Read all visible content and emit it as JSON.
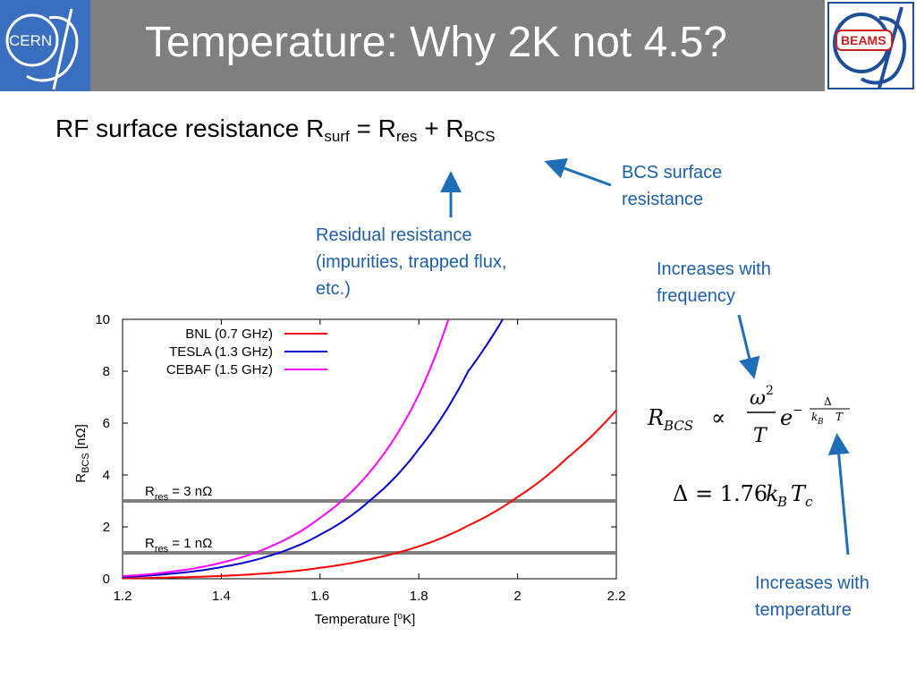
{
  "header": {
    "title": "Temperature: Why 2K not 4.5?",
    "left_logo_text": "CERN",
    "right_logo_text": "BEAMS"
  },
  "formula": {
    "prefix": "RF surface resistance R",
    "surf_sub": "surf",
    "eq": " = R",
    "res_sub": "res",
    "plus": " + R",
    "bcs_sub": "BCS"
  },
  "annotations": {
    "bcs": [
      "BCS surface",
      "resistance"
    ],
    "residual": [
      "Residual resistance",
      "(impurities, trapped flux,",
      "etc.)"
    ],
    "frequency": [
      "Increases with",
      "frequency"
    ],
    "temperature": [
      "Increases with",
      "temperature"
    ]
  },
  "equations": {
    "rbcs": "R_BCS ∝ (ω²/T) e^(−Δ/k_B T)",
    "delta": "Δ = 1.76k_B T_c"
  },
  "colors": {
    "header_bg": "#7f7f7f",
    "note_blue": "#1f5fa8",
    "arrow_blue": "#1f6fb8",
    "bnl": "#ff0000",
    "tesla": "#0000d0",
    "cebaf": "#ff00ff",
    "hline": "#808080"
  },
  "chart_data": {
    "type": "line",
    "title": "",
    "xlabel": "Temperature [⁰K]",
    "ylabel_main": "R",
    "ylabel_sub": "BCS",
    "ylabel_unit": " [nΩ]",
    "xlim": [
      1.2,
      2.2
    ],
    "ylim": [
      0,
      10
    ],
    "xticks": [
      "1.2",
      "1.4",
      "1.6",
      "1.8",
      "2",
      "2.2"
    ],
    "yticks": [
      "0",
      "2",
      "4",
      "6",
      "8",
      "10"
    ],
    "legend_position": "top-left",
    "series": [
      {
        "name": "BNL (0.7 GHz)",
        "color": "#ff0000",
        "x": [
          1.2,
          1.3,
          1.4,
          1.5,
          1.6,
          1.7,
          1.8,
          1.9,
          2.0,
          2.1,
          2.2
        ],
        "y": [
          0.02,
          0.05,
          0.11,
          0.22,
          0.42,
          0.75,
          1.25,
          2.05,
          3.15,
          4.65,
          6.5
        ]
      },
      {
        "name": "TESLA (1.3 GHz)",
        "color": "#0000d0",
        "x": [
          1.2,
          1.3,
          1.4,
          1.5,
          1.6,
          1.7,
          1.8,
          1.9,
          1.97
        ],
        "y": [
          0.07,
          0.2,
          0.45,
          0.9,
          1.7,
          3.0,
          5.0,
          8.0,
          10.0
        ]
      },
      {
        "name": "CEBAF (1.5 GHz)",
        "color": "#ff00ff",
        "x": [
          1.2,
          1.3,
          1.4,
          1.5,
          1.6,
          1.7,
          1.8,
          1.86
        ],
        "y": [
          0.1,
          0.28,
          0.62,
          1.25,
          2.35,
          4.1,
          7.1,
          10.0
        ]
      }
    ],
    "hlines": [
      {
        "label_main": "R",
        "label_sub": "res",
        "label_value": " = 3 nΩ",
        "y": 3
      },
      {
        "label_main": "R",
        "label_sub": "res",
        "label_value": " = 1 nΩ",
        "y": 1
      }
    ]
  }
}
